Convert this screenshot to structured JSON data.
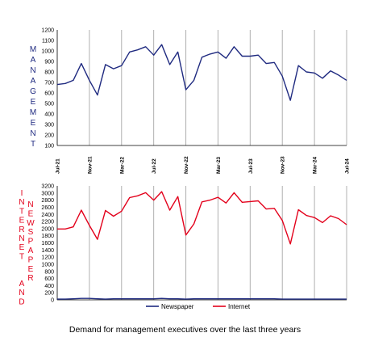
{
  "caption": "Demand for management executives over the last three years",
  "colors": {
    "management": "#1f2a80",
    "internet": "#e3001b",
    "newspaper": "#1f2a80",
    "grid": "#b0b0b0",
    "axis": "#000000"
  },
  "chart_data": [
    {
      "type": "line",
      "ylabel_letters": [
        "M",
        "A",
        "N",
        "A",
        "G",
        "E",
        "M",
        "E",
        "N",
        "T"
      ],
      "ylim": [
        100,
        1200
      ],
      "yticks": [
        100,
        200,
        300,
        400,
        500,
        600,
        700,
        800,
        900,
        1000,
        1100,
        1200
      ],
      "xticklabels": [
        "Jul-21",
        "Nov-21",
        "Mar-22",
        "Jul-22",
        "Nov-22",
        "Mar-23",
        "Jul-23",
        "Nov-23",
        "Mar-24",
        "Jul-24"
      ],
      "grid": "vertical",
      "series": [
        {
          "values": [
            680,
            690,
            720,
            880,
            720,
            580,
            870,
            830,
            860,
            990,
            1010,
            1040,
            960,
            1060,
            870,
            990,
            630,
            720,
            940,
            970,
            990,
            930,
            1040,
            950,
            950,
            960,
            880,
            890,
            760,
            530,
            860,
            800,
            790,
            740,
            810,
            770,
            720
          ]
        }
      ]
    },
    {
      "type": "line",
      "ylabel_left_letters": [
        "I",
        "N",
        "T",
        "E",
        "R",
        "N",
        "E",
        "T",
        "",
        "",
        "A",
        "N",
        "D"
      ],
      "ylabel_right_letters": [
        "N",
        "E",
        "W",
        "S",
        "P",
        "A",
        "P",
        "E",
        "R"
      ],
      "ylim": [
        0,
        3200
      ],
      "yticks": [
        0,
        200,
        400,
        600,
        800,
        1000,
        1200,
        1400,
        1600,
        1800,
        2000,
        2200,
        2400,
        2600,
        2800,
        3000,
        3200
      ],
      "grid": "vertical",
      "legend_position": "bottom",
      "series": [
        {
          "name": "Newspaper",
          "values": [
            20,
            20,
            30,
            40,
            40,
            30,
            20,
            30,
            30,
            30,
            30,
            30,
            30,
            40,
            30,
            30,
            20,
            30,
            30,
            30,
            30,
            30,
            30,
            30,
            30,
            30,
            30,
            30,
            20,
            20,
            20,
            20,
            20,
            20,
            20,
            20,
            20
          ]
        },
        {
          "name": "Internet",
          "values": [
            1990,
            1990,
            2050,
            2520,
            2090,
            1700,
            2510,
            2350,
            2490,
            2870,
            2920,
            3010,
            2800,
            3040,
            2520,
            2900,
            1820,
            2130,
            2750,
            2800,
            2880,
            2720,
            3010,
            2740,
            2760,
            2780,
            2550,
            2570,
            2230,
            1570,
            2530,
            2370,
            2310,
            2170,
            2360,
            2280,
            2110
          ]
        }
      ]
    }
  ]
}
